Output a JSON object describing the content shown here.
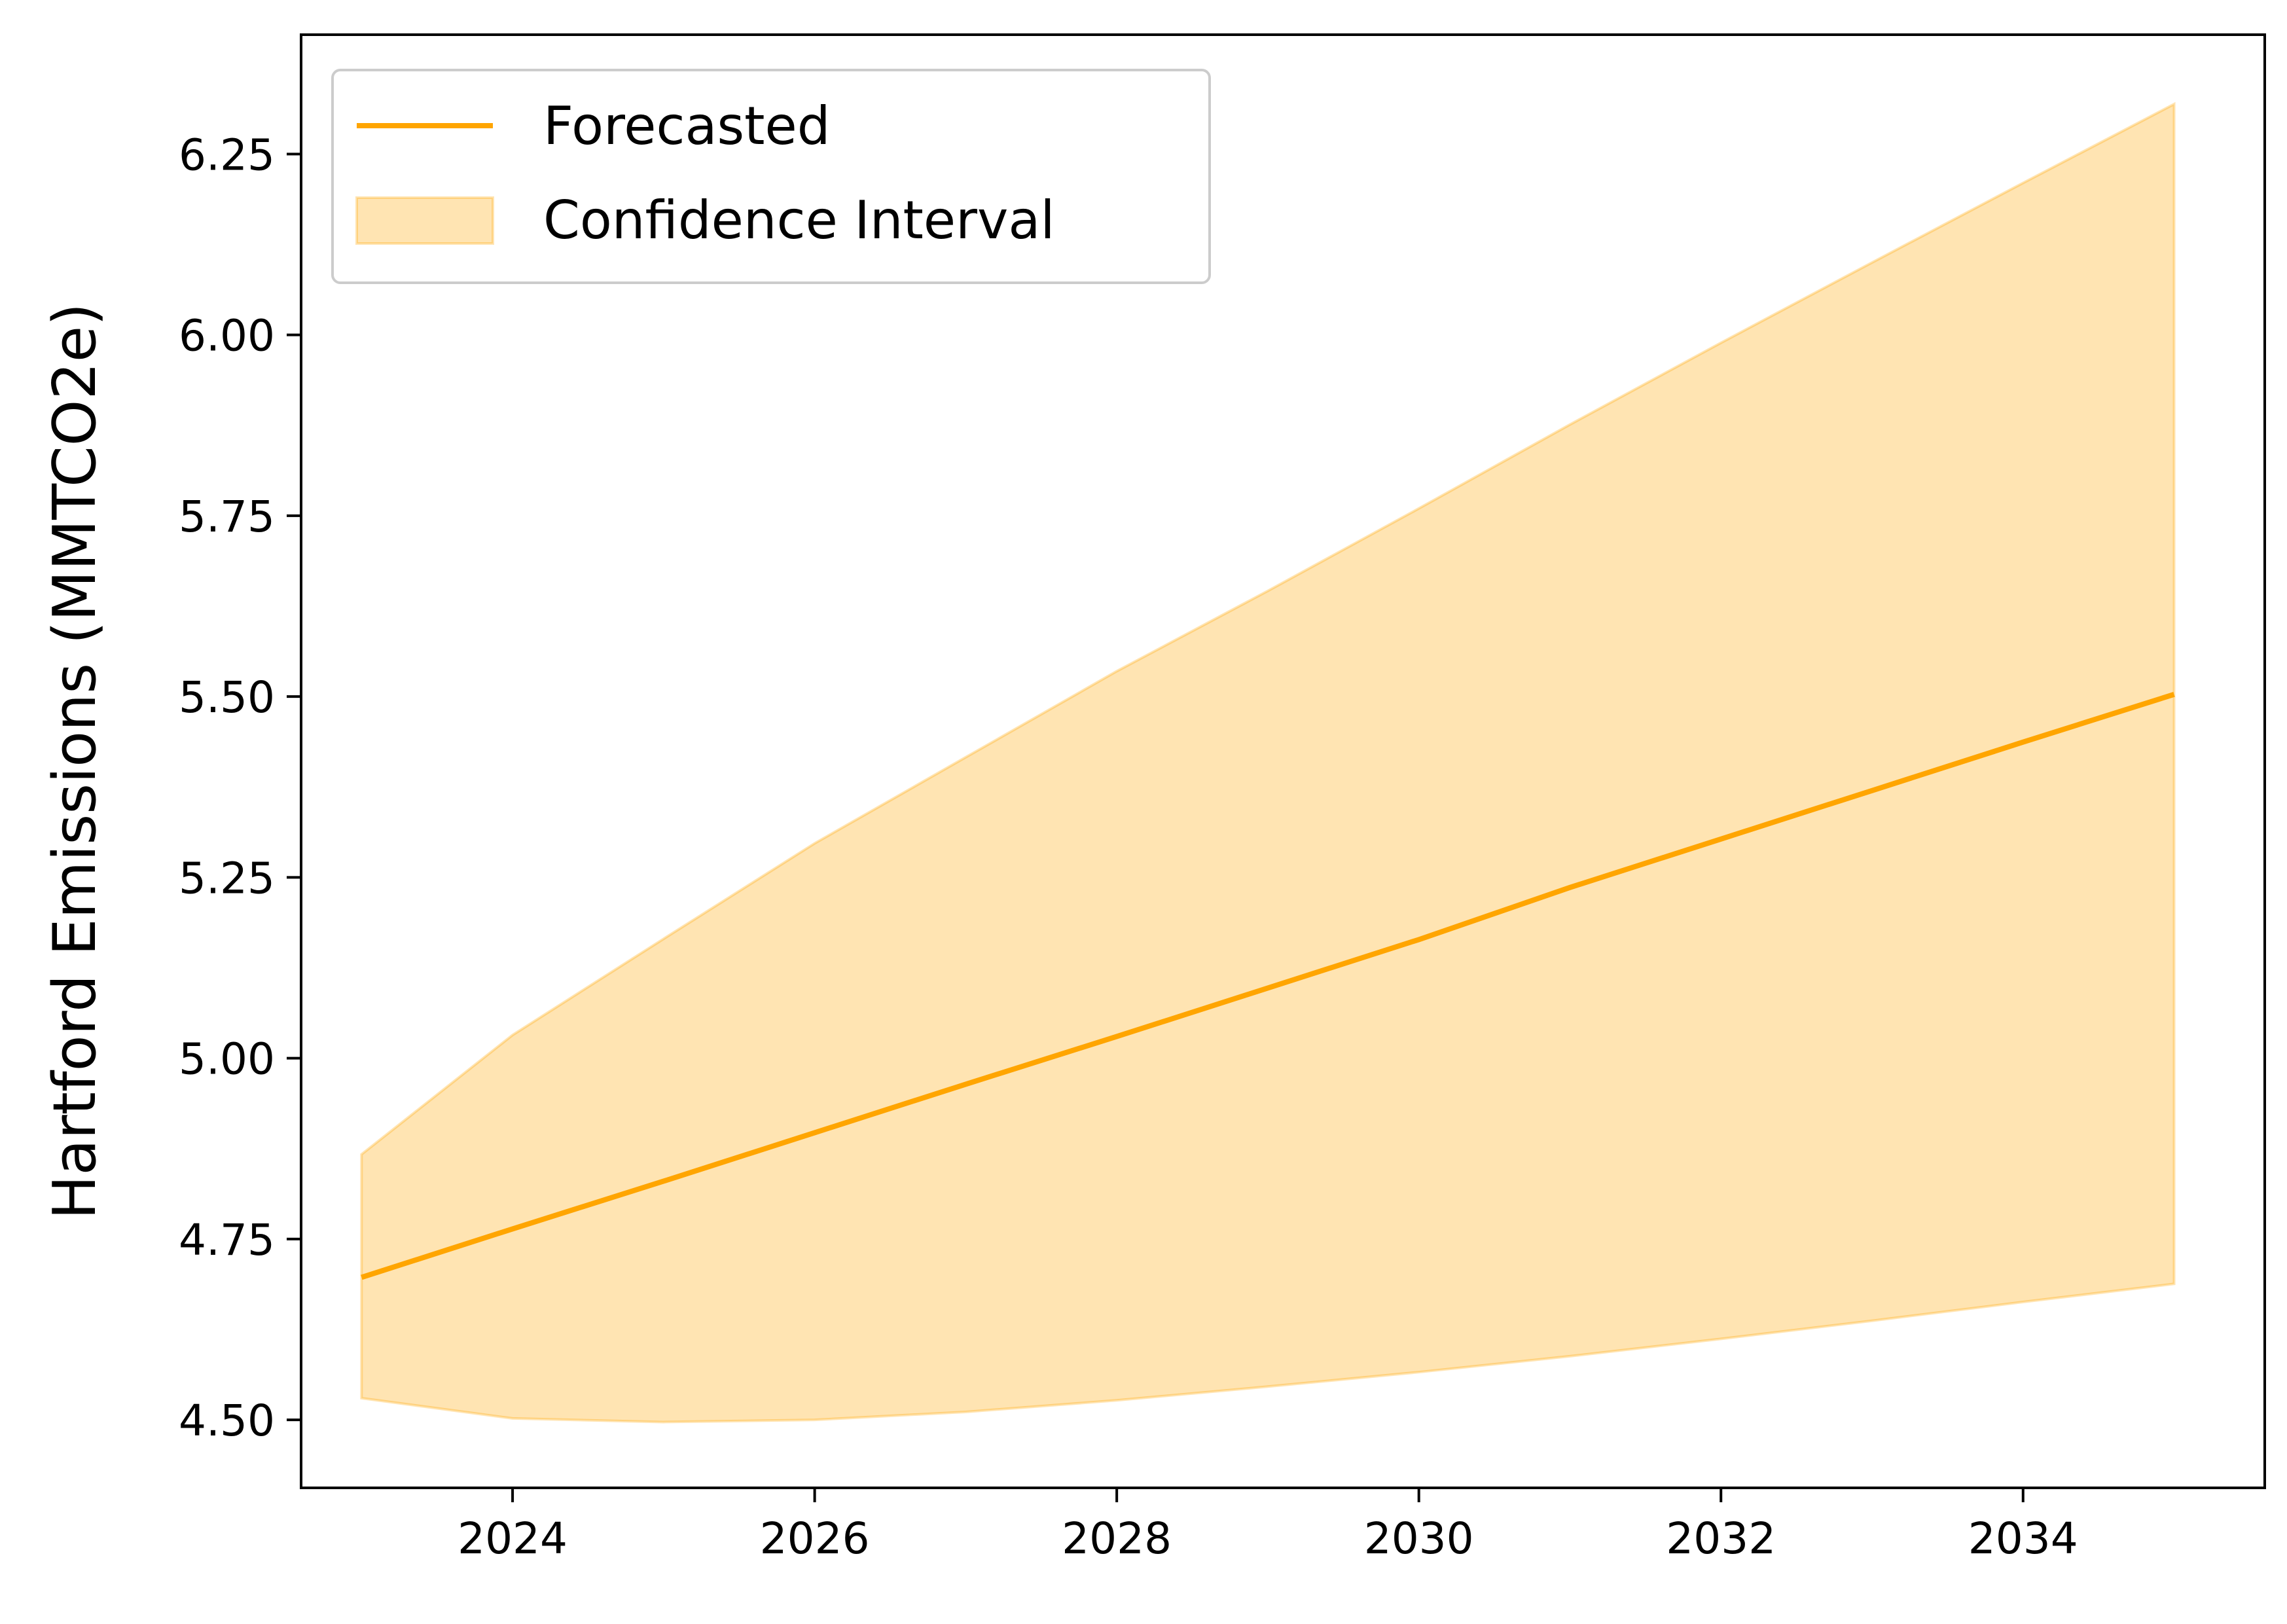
{
  "chart_data": {
    "type": "line",
    "title": "",
    "xlabel": "",
    "ylabel": "Hartford Emissions (MMTCO2e)",
    "xlim": [
      2022.6,
      2035.6
    ],
    "ylim": [
      4.406,
      6.415
    ],
    "xticks": [
      2024,
      2026,
      2028,
      2030,
      2032,
      2034
    ],
    "xtick_labels": [
      "2024",
      "2026",
      "2028",
      "2030",
      "2032",
      "2034"
    ],
    "yticks": [
      4.5,
      4.75,
      5.0,
      5.25,
      5.5,
      5.75,
      6.0,
      6.25
    ],
    "ytick_labels": [
      "4.50",
      "4.75",
      "5.00",
      "5.25",
      "5.50",
      "5.75",
      "6.00",
      "6.25"
    ],
    "grid": false,
    "legend_position": "top-left",
    "x": [
      2023,
      2024,
      2025,
      2026,
      2027,
      2028,
      2029,
      2030,
      2031,
      2032,
      2033,
      2034,
      2035
    ],
    "series": [
      {
        "name": "Forecasted",
        "kind": "line",
        "color": "#ffa500",
        "values": [
          4.697,
          4.764,
          4.83,
          4.897,
          4.964,
          5.03,
          5.097,
          5.164,
          5.236,
          5.303,
          5.37,
          5.437,
          5.503
        ]
      },
      {
        "name": "Confidence Interval",
        "kind": "band",
        "color": "#ffa500",
        "opacity": 0.3,
        "lower": [
          4.53,
          4.502,
          4.497,
          4.5,
          4.511,
          4.527,
          4.546,
          4.566,
          4.588,
          4.612,
          4.637,
          4.663,
          4.688
        ],
        "upper": [
          4.867,
          5.032,
          5.165,
          5.297,
          5.416,
          5.535,
          5.646,
          5.76,
          5.876,
          5.989,
          6.1,
          6.21,
          6.319
        ]
      }
    ]
  }
}
